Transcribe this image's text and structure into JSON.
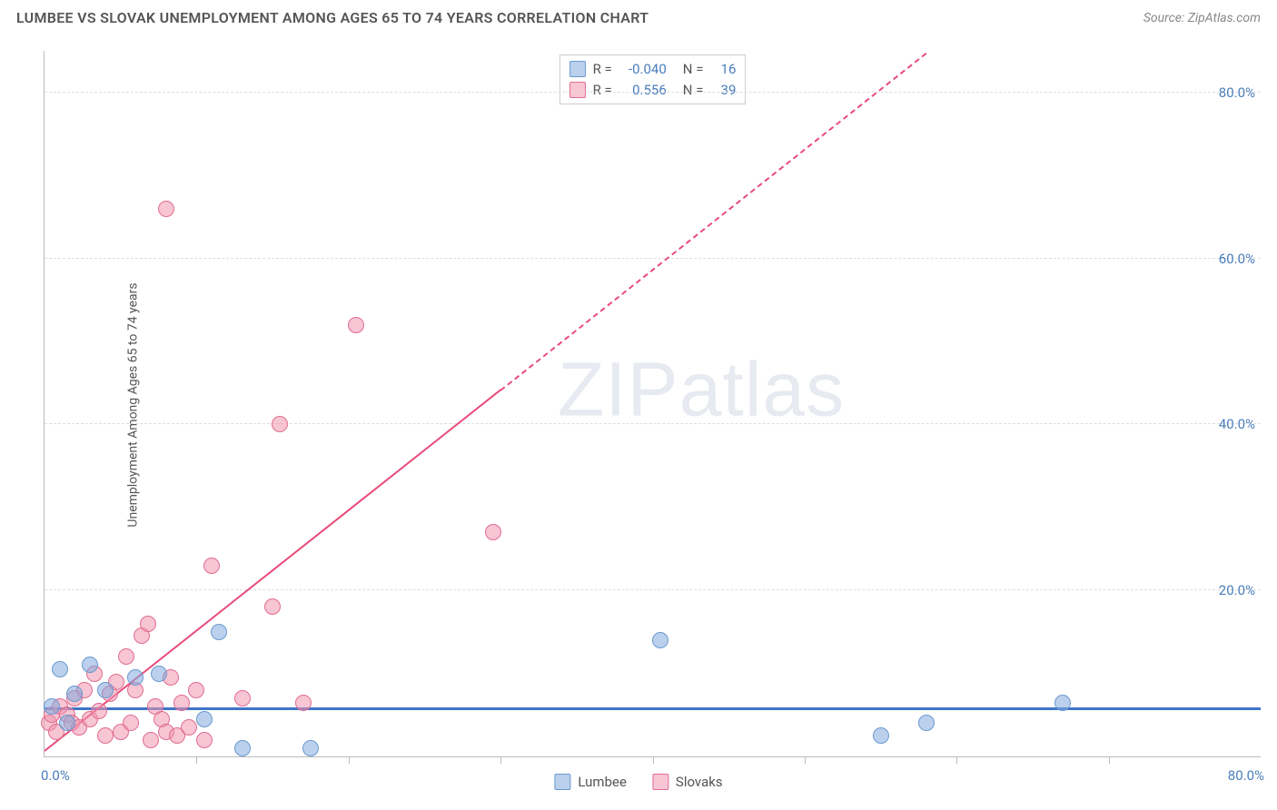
{
  "header": {
    "title": "LUMBEE VS SLOVAK UNEMPLOYMENT AMONG AGES 65 TO 74 YEARS CORRELATION CHART",
    "source": "Source: ZipAtlas.com"
  },
  "watermark": {
    "part1": "ZIP",
    "part2": "atlas"
  },
  "axis": {
    "ylabel": "Unemployment Among Ages 65 to 74 years",
    "x_min": 0,
    "x_max": 80,
    "y_min": 0,
    "y_max": 85,
    "y_ticks": [
      20,
      40,
      60,
      80
    ],
    "y_tick_labels": [
      "20.0%",
      "40.0%",
      "60.0%",
      "80.0%"
    ],
    "x_tick_left": "0.0%",
    "x_tick_right": "80.0%",
    "x_minor_ticks": [
      10,
      20,
      30,
      40,
      50,
      60,
      70
    ],
    "grid_color": "#dddddd",
    "axis_color": "#bbbbbb",
    "tick_label_color": "#4a7ebb",
    "label_fontsize": 14
  },
  "series": {
    "lumbee": {
      "label": "Lumbee",
      "fill": "rgba(130,170,220,0.55)",
      "stroke": "#6a99cf",
      "marker_radius": 9,
      "trend": {
        "color": "#3f74c8",
        "width": 3,
        "y_intercept": 5.6,
        "slope": 0.0,
        "solid_to_x": 80,
        "dash_to_x": 80
      },
      "stats": {
        "R": "-0.040",
        "N": "16"
      },
      "points": [
        [
          1.0,
          10.5
        ],
        [
          3.0,
          11.0
        ],
        [
          2.0,
          7.5
        ],
        [
          0.5,
          6.0
        ],
        [
          1.5,
          4.0
        ],
        [
          4.0,
          8.0
        ],
        [
          6.0,
          9.5
        ],
        [
          7.5,
          10.0
        ],
        [
          10.5,
          4.5
        ],
        [
          11.5,
          15.0
        ],
        [
          13.0,
          1.0
        ],
        [
          17.5,
          1.0
        ],
        [
          40.5,
          14.0
        ],
        [
          55.0,
          2.5
        ],
        [
          58.0,
          4.0
        ],
        [
          67.0,
          6.5
        ]
      ]
    },
    "slovaks": {
      "label": "Slovaks",
      "fill": "rgba(240,150,175,0.55)",
      "stroke": "#e16d91",
      "marker_radius": 9,
      "trend": {
        "color": "#e84b7a",
        "width": 2.5,
        "y_intercept": 0.5,
        "slope": 1.45,
        "solid_to_x": 30,
        "dash_to_x": 58
      },
      "stats": {
        "R": "0.556",
        "N": "39"
      },
      "points": [
        [
          0.3,
          4.0
        ],
        [
          0.5,
          5.0
        ],
        [
          0.8,
          3.0
        ],
        [
          1.0,
          6.0
        ],
        [
          1.5,
          5.0
        ],
        [
          1.8,
          4.0
        ],
        [
          2.0,
          7.0
        ],
        [
          2.3,
          3.5
        ],
        [
          2.6,
          8.0
        ],
        [
          3.0,
          4.5
        ],
        [
          3.3,
          10.0
        ],
        [
          3.6,
          5.5
        ],
        [
          4.0,
          2.5
        ],
        [
          4.3,
          7.5
        ],
        [
          4.7,
          9.0
        ],
        [
          5.0,
          3.0
        ],
        [
          5.4,
          12.0
        ],
        [
          5.7,
          4.0
        ],
        [
          6.0,
          8.0
        ],
        [
          6.4,
          14.5
        ],
        [
          6.8,
          16.0
        ],
        [
          7.0,
          2.0
        ],
        [
          7.3,
          6.0
        ],
        [
          7.7,
          4.5
        ],
        [
          8.0,
          3.0
        ],
        [
          8.3,
          9.5
        ],
        [
          8.7,
          2.5
        ],
        [
          9.0,
          6.5
        ],
        [
          9.5,
          3.5
        ],
        [
          10.0,
          8.0
        ],
        [
          10.5,
          2.0
        ],
        [
          11.0,
          23.0
        ],
        [
          13.0,
          7.0
        ],
        [
          15.0,
          18.0
        ],
        [
          17.0,
          6.5
        ],
        [
          15.5,
          40.0
        ],
        [
          20.5,
          52.0
        ],
        [
          8.0,
          66.0
        ],
        [
          29.5,
          27.0
        ]
      ]
    }
  },
  "legend_top": {
    "rows": [
      {
        "swatch_fill": "rgba(130,170,220,0.55)",
        "swatch_stroke": "#6a99cf",
        "R_label": "R =",
        "R": "-0.040",
        "N_label": "N =",
        "N": "16"
      },
      {
        "swatch_fill": "rgba(240,150,175,0.55)",
        "swatch_stroke": "#e16d91",
        "R_label": "R =",
        "R": "0.556",
        "N_label": "N =",
        "N": "39"
      }
    ]
  },
  "legend_bottom": {
    "items": [
      {
        "swatch_fill": "rgba(130,170,220,0.55)",
        "swatch_stroke": "#6a99cf",
        "label": "Lumbee"
      },
      {
        "swatch_fill": "rgba(240,150,175,0.55)",
        "swatch_stroke": "#e16d91",
        "label": "Slovaks"
      }
    ]
  }
}
